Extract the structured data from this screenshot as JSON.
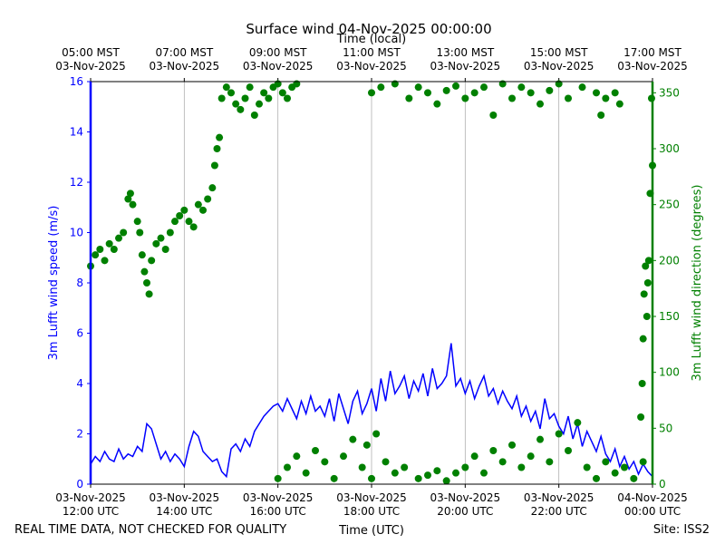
{
  "chart_data": {
    "type": "line",
    "title": "Surface wind 04-Nov-2025 00:00:00",
    "xlabel": "Time (UTC)",
    "x2label": "Time (local)",
    "ylabel": "3m Lufft wind speed (m/s)",
    "y2label": "3m Lufft wind direction (degrees)",
    "footnote": "REAL TIME DATA, NOT CHECKED FOR QUALITY",
    "site": "Site: ISS2",
    "grid": "x",
    "xlim": [
      12,
      24
    ],
    "xticks": [
      {
        "value": 12,
        "label": "03-Nov-2025\n12:00 UTC"
      },
      {
        "value": 14,
        "label": "03-Nov-2025\n14:00 UTC"
      },
      {
        "value": 16,
        "label": "03-Nov-2025\n16:00 UTC"
      },
      {
        "value": 18,
        "label": "03-Nov-2025\n18:00 UTC"
      },
      {
        "value": 20,
        "label": "03-Nov-2025\n20:00 UTC"
      },
      {
        "value": 22,
        "label": "03-Nov-2025\n22:00 UTC"
      },
      {
        "value": 24,
        "label": "04-Nov-2025\n00:00 UTC"
      }
    ],
    "x2ticks": [
      {
        "value": 12,
        "label": "05:00 MST\n03-Nov-2025"
      },
      {
        "value": 14,
        "label": "07:00 MST\n03-Nov-2025"
      },
      {
        "value": 16,
        "label": "09:00 MST\n03-Nov-2025"
      },
      {
        "value": 18,
        "label": "11:00 MST\n03-Nov-2025"
      },
      {
        "value": 20,
        "label": "13:00 MST\n03-Nov-2025"
      },
      {
        "value": 22,
        "label": "15:00 MST\n03-Nov-2025"
      },
      {
        "value": 24,
        "label": "17:00 MST\n03-Nov-2025"
      }
    ],
    "ylim": [
      0,
      16
    ],
    "yticks": [
      0,
      2,
      4,
      6,
      8,
      10,
      12,
      14,
      16
    ],
    "y2lim": [
      0,
      360
    ],
    "y2ticks": [
      0,
      50,
      100,
      150,
      200,
      250,
      300,
      350
    ],
    "series": [
      {
        "type": "line",
        "color": "#0000ff",
        "x": [
          12.0,
          12.1,
          12.2,
          12.3,
          12.4,
          12.5,
          12.6,
          12.7,
          12.8,
          12.9,
          13.0,
          13.1,
          13.2,
          13.3,
          13.4,
          13.5,
          13.6,
          13.7,
          13.8,
          13.9,
          14.0,
          14.1,
          14.2,
          14.3,
          14.4,
          14.5,
          14.6,
          14.7,
          14.8,
          14.9,
          15.0,
          15.1,
          15.2,
          15.3,
          15.4,
          15.5,
          15.6,
          15.7,
          15.8,
          15.9,
          16.0,
          16.1,
          16.2,
          16.3,
          16.4,
          16.5,
          16.6,
          16.7,
          16.8,
          16.9,
          17.0,
          17.1,
          17.2,
          17.3,
          17.4,
          17.5,
          17.6,
          17.7,
          17.8,
          17.9,
          18.0,
          18.1,
          18.2,
          18.3,
          18.4,
          18.5,
          18.6,
          18.7,
          18.8,
          18.9,
          19.0,
          19.1,
          19.2,
          19.3,
          19.4,
          19.5,
          19.6,
          19.7,
          19.8,
          19.9,
          20.0,
          20.1,
          20.2,
          20.3,
          20.4,
          20.5,
          20.6,
          20.7,
          20.8,
          20.9,
          21.0,
          21.1,
          21.2,
          21.3,
          21.4,
          21.5,
          21.6,
          21.7,
          21.8,
          21.9,
          22.0,
          22.1,
          22.2,
          22.3,
          22.4,
          22.5,
          22.6,
          22.7,
          22.8,
          22.9,
          23.0,
          23.1,
          23.2,
          23.3,
          23.4,
          23.5,
          23.6,
          23.7,
          23.8,
          23.9,
          24.0
        ],
        "values": [
          0.8,
          1.1,
          0.9,
          1.3,
          1.0,
          0.9,
          1.4,
          1.0,
          1.2,
          1.1,
          1.5,
          1.3,
          2.4,
          2.2,
          1.6,
          1.0,
          1.3,
          0.9,
          1.2,
          1.0,
          0.7,
          1.5,
          2.1,
          1.9,
          1.3,
          1.1,
          0.9,
          1.0,
          0.5,
          0.3,
          1.4,
          1.6,
          1.3,
          1.8,
          1.5,
          2.1,
          2.4,
          2.7,
          2.9,
          3.1,
          3.2,
          2.9,
          3.4,
          3.0,
          2.6,
          3.3,
          2.8,
          3.5,
          2.9,
          3.1,
          2.7,
          3.4,
          2.5,
          3.6,
          3.0,
          2.4,
          3.3,
          3.7,
          2.8,
          3.2,
          3.8,
          2.9,
          4.2,
          3.3,
          4.5,
          3.6,
          3.9,
          4.3,
          3.4,
          4.1,
          3.7,
          4.4,
          3.5,
          4.6,
          3.8,
          4.0,
          4.3,
          5.6,
          3.9,
          4.2,
          3.6,
          4.1,
          3.4,
          3.9,
          4.3,
          3.5,
          3.8,
          3.2,
          3.7,
          3.3,
          3.0,
          3.5,
          2.7,
          3.1,
          2.5,
          2.9,
          2.2,
          3.4,
          2.6,
          2.8,
          2.3,
          2.0,
          2.7,
          1.8,
          2.4,
          1.5,
          2.1,
          1.7,
          1.3,
          1.9,
          1.2,
          0.9,
          1.4,
          0.7,
          1.1,
          0.6,
          0.9,
          0.4,
          0.8,
          0.5,
          0.3
        ]
      },
      {
        "type": "scatter",
        "axis": "y2",
        "color": "#008000",
        "x": [
          12.0,
          12.1,
          12.2,
          12.3,
          12.4,
          12.5,
          12.6,
          12.7,
          12.8,
          12.85,
          12.9,
          13.0,
          13.05,
          13.1,
          13.15,
          13.2,
          13.25,
          13.3,
          13.4,
          13.5,
          13.6,
          13.7,
          13.8,
          13.9,
          14.0,
          14.1,
          14.2,
          14.3,
          14.4,
          14.5,
          14.6,
          14.65,
          14.7,
          14.75,
          14.8,
          14.9,
          15.0,
          15.1,
          15.2,
          15.3,
          15.4,
          15.5,
          15.6,
          15.7,
          15.8,
          15.9,
          16.0,
          16.1,
          16.2,
          16.3,
          16.4,
          16.0,
          16.2,
          16.4,
          16.6,
          16.8,
          17.0,
          17.2,
          17.4,
          17.6,
          17.8,
          17.9,
          18.0,
          18.1,
          18.3,
          18.5,
          18.7,
          19.0,
          19.2,
          19.4,
          19.6,
          19.8,
          20.0,
          20.2,
          20.4,
          20.6,
          20.8,
          21.0,
          21.2,
          21.4,
          21.6,
          21.8,
          22.0,
          22.2,
          22.4,
          22.6,
          22.8,
          23.0,
          23.2,
          23.4,
          23.6,
          23.8,
          18.0,
          18.2,
          18.5,
          18.8,
          19.0,
          19.2,
          19.4,
          19.6,
          19.8,
          20.0,
          20.2,
          20.4,
          20.6,
          20.8,
          21.0,
          21.2,
          21.4,
          21.6,
          21.8,
          22.0,
          22.2,
          22.5,
          22.8,
          22.9,
          23.0,
          23.2,
          23.3,
          23.75,
          23.78,
          23.8,
          23.82,
          23.85,
          23.88,
          23.9,
          23.92,
          23.95,
          23.98,
          24.0
        ],
        "values": [
          195,
          205,
          210,
          200,
          215,
          210,
          220,
          225,
          255,
          260,
          250,
          235,
          225,
          205,
          190,
          180,
          170,
          200,
          215,
          220,
          210,
          225,
          235,
          240,
          245,
          235,
          230,
          250,
          245,
          255,
          265,
          285,
          300,
          310,
          345,
          355,
          350,
          340,
          335,
          345,
          355,
          330,
          340,
          350,
          345,
          355,
          358,
          350,
          345,
          355,
          358,
          5,
          15,
          25,
          10,
          30,
          20,
          5,
          25,
          40,
          15,
          35,
          5,
          45,
          20,
          10,
          15,
          5,
          8,
          12,
          3,
          10,
          15,
          25,
          10,
          30,
          20,
          35,
          15,
          25,
          40,
          20,
          45,
          30,
          55,
          15,
          5,
          20,
          10,
          15,
          5,
          20,
          350,
          355,
          358,
          345,
          355,
          350,
          340,
          352,
          356,
          345,
          350,
          355,
          330,
          358,
          345,
          355,
          350,
          340,
          352,
          358,
          345,
          355,
          350,
          330,
          345,
          350,
          340,
          60,
          90,
          130,
          170,
          195,
          150,
          180,
          200,
          260,
          345,
          285
        ]
      }
    ]
  }
}
